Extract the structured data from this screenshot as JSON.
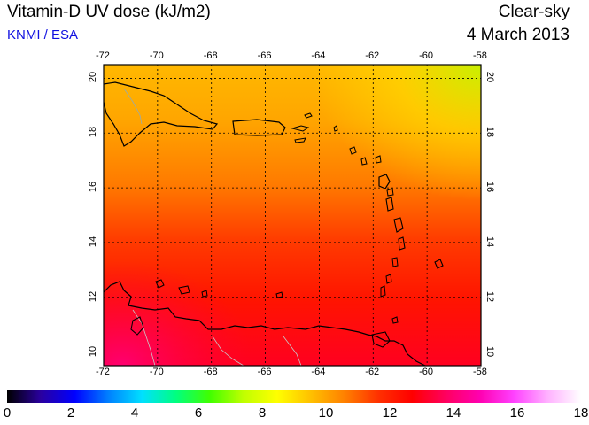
{
  "header": {
    "title": "Vitamin-D UV dose (kJ/m2)",
    "credit": "KNMI / ESA",
    "mode": "Clear-sky",
    "date": "4 March 2013"
  },
  "map": {
    "lon_ticks": [
      "-72",
      "-70",
      "-68",
      "-66",
      "-64",
      "-62",
      "-60",
      "-58"
    ],
    "lat_ticks": [
      "20",
      "18",
      "16",
      "14",
      "12",
      "10"
    ],
    "lon_range": [
      -72,
      -58
    ],
    "lat_range": [
      9.5,
      20.5
    ],
    "grid": true
  },
  "colorbar": {
    "labels": [
      "0",
      "2",
      "4",
      "6",
      "8",
      "10",
      "12",
      "14",
      "16",
      "18"
    ],
    "range": [
      0,
      18
    ],
    "colors": [
      "#000000",
      "#2a00a0",
      "#0000ff",
      "#0080ff",
      "#00e0ff",
      "#00ff80",
      "#40ff00",
      "#c0ff00",
      "#ffff00",
      "#ffc000",
      "#ff8000",
      "#ff3000",
      "#ff0000",
      "#ff0060",
      "#ff00b0",
      "#ff40ff",
      "#ffb0ff",
      "#ffffff"
    ]
  }
}
